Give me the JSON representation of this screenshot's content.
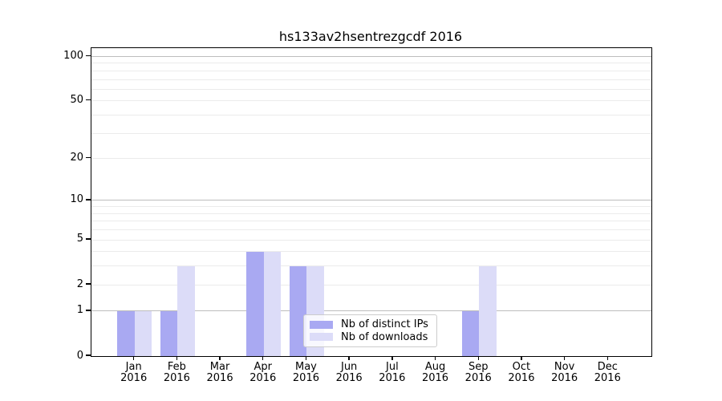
{
  "chart_data": {
    "type": "bar",
    "title": "hs133av2hsentrezgcdf 2016",
    "categories": [
      "Jan",
      "Feb",
      "Mar",
      "Apr",
      "May",
      "Jun",
      "Jul",
      "Aug",
      "Sep",
      "Oct",
      "Nov",
      "Dec"
    ],
    "year_label": "2016",
    "series": [
      {
        "name": "Nb of distinct IPs",
        "color": "#a9a9f2",
        "values": [
          1,
          1,
          0,
          4,
          3,
          0,
          0,
          0,
          1,
          0,
          0,
          0
        ]
      },
      {
        "name": "Nb of downloads",
        "color": "#dcdcf8",
        "values": [
          1,
          3,
          0,
          4,
          3,
          0,
          0,
          0,
          3,
          0,
          0,
          0
        ]
      }
    ],
    "y_scale": "log10(value+1)",
    "ylim": [
      0,
      115
    ],
    "y_ticks": [
      0,
      1,
      2,
      5,
      10,
      20,
      50,
      100
    ],
    "y_major_gridlines": [
      1,
      10,
      100
    ],
    "y_minor_gridlines": [
      2,
      3,
      4,
      5,
      6,
      7,
      8,
      9,
      20,
      30,
      40,
      50,
      60,
      70,
      80,
      90
    ],
    "grid": true,
    "legend_position": "lower right of plot, inside",
    "colors": {
      "major_grid": "#bdbdbd",
      "minor_grid": "#ebebeb",
      "axis": "#000000",
      "text": "#000000",
      "background": "#ffffff"
    }
  }
}
